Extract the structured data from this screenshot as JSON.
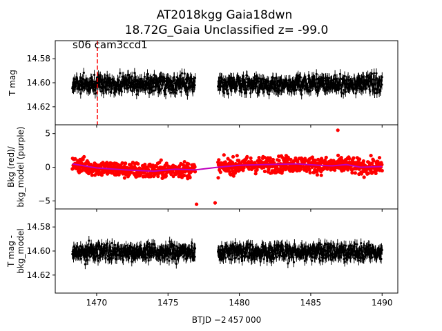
{
  "title": {
    "line1": "AT2018kgg  Gaia18dwn",
    "line2": "18.72G_Gaia Unclassified z= -99.0"
  },
  "annotation": "s06 cam3ccd1",
  "xlabel": "BTJD −2 457 000",
  "colors": {
    "lightcurve": "#000000",
    "background": "#ff0000",
    "bkg_model": "#bf00bf",
    "marker_line": "#ff0000"
  },
  "chart_data": [
    {
      "type": "scatter",
      "panel": "top",
      "ylabel": "T mag",
      "y_inverted": true,
      "xlim": [
        1467.1,
        1491.1
      ],
      "ylim": [
        14.635,
        14.565
      ],
      "xticks": [
        1470,
        1475,
        1480,
        1485,
        1490
      ],
      "yticks": [
        14.58,
        14.6,
        14.62
      ],
      "yticklabels": [
        "14.58",
        "14.60",
        "14.62"
      ],
      "marker_line_x": 1470.05,
      "series": [
        {
          "segments": [
            [
              1468.3,
              1476.9
            ],
            [
              1478.5,
              1490.0
            ]
          ],
          "center": 14.601,
          "scatter": 0.008,
          "error_bar": 0.004
        }
      ]
    },
    {
      "type": "scatter",
      "panel": "middle",
      "ylabel": "Bkg (red)/\nbkg_model (purple)",
      "xlim": [
        1467.1,
        1491.1
      ],
      "ylim": [
        -6.2,
        6.3
      ],
      "xticks": [
        1470,
        1475,
        1480,
        1485,
        1490
      ],
      "yticks": [
        -5,
        0,
        5
      ],
      "yticklabels": [
        "−5",
        "0",
        "5"
      ],
      "series": [
        {
          "segments": [
            [
              1468.3,
              1476.9
            ],
            [
              1478.5,
              1490.0
            ]
          ],
          "scatter": 1.1,
          "outliers": [
            [
              1477.0,
              -5.5
            ],
            [
              1478.3,
              -5.3
            ],
            [
              1486.9,
              5.5
            ]
          ]
        }
      ],
      "model_line": {
        "x": [
          1468.3,
          1470,
          1472,
          1474,
          1475.5,
          1476.9,
          1478.5,
          1480,
          1482,
          1484,
          1485.5,
          1486.5,
          1487.5,
          1488.5,
          1490.0
        ],
        "y": [
          0.5,
          -0.1,
          -0.4,
          -0.6,
          -0.3,
          -0.4,
          0.0,
          0.3,
          0.4,
          0.5,
          0.3,
          0.2,
          0.4,
          0.0,
          0.1
        ]
      }
    },
    {
      "type": "scatter",
      "panel": "bottom",
      "ylabel": "T mag -\nbkg_model",
      "y_inverted": true,
      "xlim": [
        1467.1,
        1491.1
      ],
      "ylim": [
        14.635,
        14.565
      ],
      "xticks": [
        1470,
        1475,
        1480,
        1485,
        1490
      ],
      "xticklabels": [
        "1470",
        "1475",
        "1480",
        "1485",
        "1490"
      ],
      "yticks": [
        14.58,
        14.6,
        14.62
      ],
      "yticklabels": [
        "14.58",
        "14.60",
        "14.62"
      ],
      "series": [
        {
          "segments": [
            [
              1468.3,
              1476.9
            ],
            [
              1478.5,
              1490.0
            ]
          ],
          "center": 14.601,
          "scatter": 0.008,
          "error_bar": 0.004
        }
      ]
    }
  ]
}
